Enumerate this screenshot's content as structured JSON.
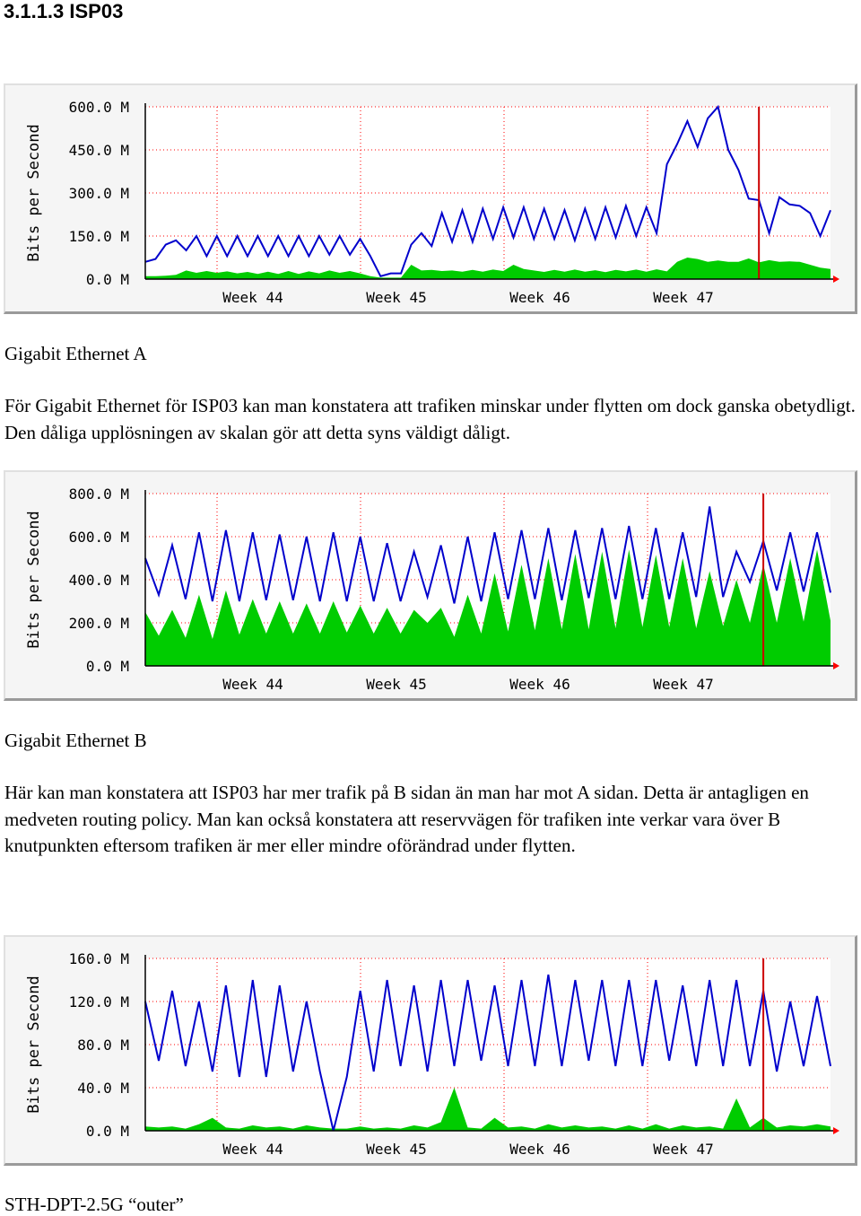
{
  "heading": "3.1.1.3 ISP03",
  "graphs": [
    {
      "id": "gigabit-ethernet-a",
      "chart_data": {
        "type": "area",
        "ylabel": "Bits per Second",
        "y_ticks": [
          "0.0 M",
          "150.0 M",
          "300.0 M",
          "450.0 M",
          "600.0 M"
        ],
        "ylim": [
          0,
          600
        ],
        "unit": "Mbit/s",
        "x_ticks": [
          "Week 44",
          "Week 45",
          "Week 46",
          "Week 47"
        ],
        "series": [
          {
            "color": "#00cc00",
            "fill": true,
            "values": [
              10,
              10,
              12,
              15,
              30,
              22,
              28,
              22,
              27,
              20,
              25,
              18,
              26,
              18,
              28,
              18,
              27,
              20,
              30,
              22,
              28,
              20,
              10,
              5,
              5,
              5,
              50,
              30,
              32,
              28,
              30,
              26,
              32,
              26,
              33,
              28,
              50,
              35,
              30,
              25,
              32,
              26,
              33,
              26,
              31,
              24,
              32,
              27,
              33,
              26,
              34,
              27,
              60,
              75,
              70,
              60,
              65,
              60,
              60,
              72,
              58,
              66,
              60,
              62,
              60,
              50,
              40,
              35
            ]
          },
          {
            "color": "#0000cc",
            "fill": false,
            "values": [
              60,
              70,
              120,
              135,
              100,
              150,
              80,
              150,
              80,
              150,
              80,
              150,
              80,
              150,
              80,
              150,
              80,
              150,
              85,
              150,
              85,
              140,
              80,
              10,
              20,
              20,
              120,
              160,
              115,
              230,
              130,
              240,
              130,
              245,
              140,
              250,
              145,
              250,
              140,
              245,
              140,
              240,
              135,
              245,
              140,
              250,
              145,
              255,
              150,
              250,
              160,
              400,
              470,
              550,
              460,
              560,
              600,
              450,
              380,
              280,
              275,
              160,
              285,
              260,
              255,
              230,
              150,
              240
            ]
          }
        ],
        "red_marker_index": 60
      }
    },
    {
      "id": "gigabit-ethernet-b",
      "chart_data": {
        "type": "area",
        "ylabel": "Bits per Second",
        "y_ticks": [
          "0.0 M",
          "200.0 M",
          "400.0 M",
          "600.0 M",
          "800.0 M"
        ],
        "ylim": [
          0,
          800
        ],
        "unit": "Mbit/s",
        "x_ticks": [
          "Week 44",
          "Week 45",
          "Week 46",
          "Week 47"
        ],
        "series": [
          {
            "color": "#00cc00",
            "fill": true,
            "values": [
              250,
              140,
              260,
              130,
              330,
              125,
              350,
              145,
              310,
              150,
              300,
              150,
              290,
              150,
              300,
              155,
              280,
              150,
              270,
              150,
              260,
              200,
              270,
              135,
              330,
              150,
              430,
              160,
              470,
              165,
              500,
              170,
              520,
              170,
              530,
              175,
              540,
              180,
              515,
              180,
              500,
              175,
              440,
              185,
              400,
              200,
              470,
              200,
              500,
              205,
              540,
              210
            ]
          },
          {
            "color": "#0000cc",
            "fill": false,
            "values": [
              500,
              330,
              560,
              310,
              620,
              300,
              630,
              300,
              620,
              305,
              610,
              305,
              600,
              300,
              620,
              300,
              600,
              300,
              570,
              300,
              530,
              320,
              560,
              290,
              600,
              300,
              620,
              310,
              630,
              310,
              640,
              305,
              630,
              315,
              640,
              310,
              650,
              310,
              640,
              310,
              620,
              320,
              740,
              320,
              530,
              390,
              580,
              350,
              620,
              345,
              620,
              340
            ]
          }
        ],
        "red_marker_index": 46
      }
    },
    {
      "id": "sth-dpt-2-5g-outer",
      "chart_data": {
        "type": "area",
        "ylabel": "Bits per Second",
        "y_ticks": [
          "0.0 M",
          "40.0 M",
          "80.0 M",
          "120.0 M",
          "160.0 M"
        ],
        "ylim": [
          0,
          160
        ],
        "unit": "Mbit/s",
        "x_ticks": [
          "Week 44",
          "Week 45",
          "Week 46",
          "Week 47"
        ],
        "series": [
          {
            "color": "#00cc00",
            "fill": true,
            "values": [
              4,
              3,
              4,
              2,
              6,
              12,
              3,
              2,
              5,
              3,
              4,
              2,
              5,
              3,
              2,
              2,
              4,
              2,
              3,
              2,
              5,
              3,
              8,
              40,
              3,
              2,
              12,
              3,
              4,
              2,
              6,
              3,
              5,
              3,
              4,
              2,
              5,
              2,
              6,
              2,
              5,
              3,
              4,
              2,
              30,
              3,
              12,
              3,
              5,
              4,
              6,
              4
            ]
          },
          {
            "color": "#0000cc",
            "fill": false,
            "values": [
              120,
              65,
              130,
              60,
              120,
              55,
              135,
              50,
              140,
              50,
              135,
              55,
              120,
              55,
              0,
              50,
              130,
              55,
              140,
              60,
              135,
              55,
              140,
              60,
              140,
              65,
              135,
              60,
              140,
              60,
              145,
              60,
              140,
              65,
              140,
              60,
              140,
              60,
              140,
              65,
              135,
              60,
              140,
              60,
              140,
              60,
              130,
              55,
              120,
              60,
              125,
              60
            ]
          }
        ],
        "red_marker_index": 46
      }
    }
  ],
  "captions": {
    "a": "Gigabit Ethernet A",
    "b": "Gigabit Ethernet B",
    "c": "STH-DPT-2.5G “outer”"
  },
  "paragraphs": {
    "a": "För Gigabit Ethernet för ISP03 kan man konstatera att trafiken minskar under flytten om dock ganska obetydligt. Den dåliga upplösningen av skalan gör att detta syns väldigt dåligt.",
    "b": "Här kan man konstatera att ISP03 har mer trafik på B sidan än man har mot A sidan. Detta är antagligen en medveten routing policy. Man kan också konstatera att reservvägen för trafiken inte verkar vara över B knutpunkten eftersom trafiken är mer eller mindre oförändrad under flytten."
  }
}
